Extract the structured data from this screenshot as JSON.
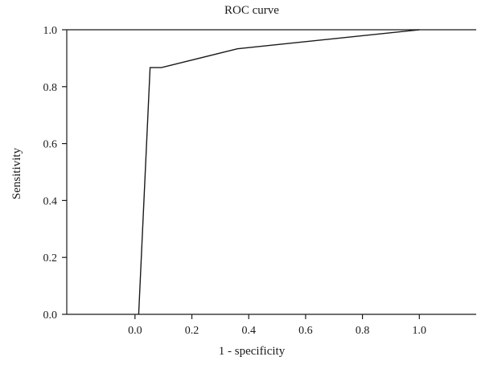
{
  "chart_data": {
    "type": "line",
    "title": "ROC curve",
    "xlabel": "1 - specificity",
    "ylabel": "Sensitivity",
    "xlim": [
      -0.24,
      1.2
    ],
    "ylim": [
      0,
      1
    ],
    "xticks": [
      0.0,
      0.2,
      0.4,
      0.6,
      0.8,
      1.0
    ],
    "xtick_labels": [
      "0.0",
      "0.2",
      "0.4",
      "0.6",
      "0.8",
      "1.0"
    ],
    "yticks": [
      0.0,
      0.2,
      0.4,
      0.6,
      0.8,
      1.0
    ],
    "ytick_labels": [
      "0.0",
      "0.2",
      "0.4",
      "0.6",
      "0.8",
      "1.0"
    ],
    "grid": false,
    "series": [
      {
        "x": [
          0.013,
          0.053,
          0.093,
          0.36,
          1.0
        ],
        "y": [
          0.0,
          0.867,
          0.867,
          0.933,
          1.0
        ]
      }
    ],
    "line_color": "#1a1a1a"
  }
}
